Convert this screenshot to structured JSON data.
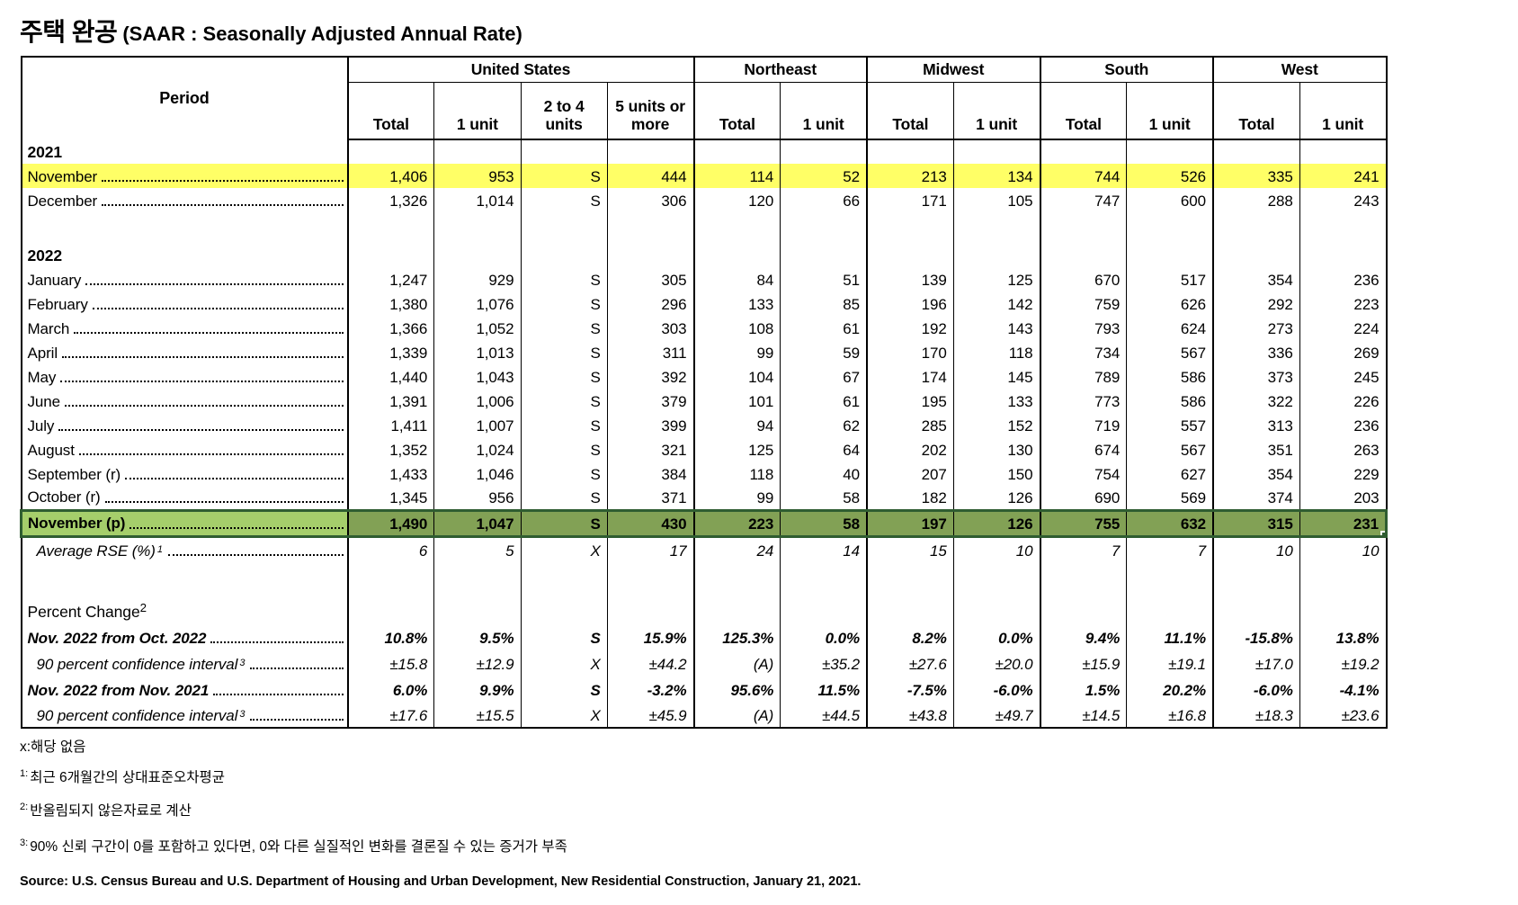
{
  "title": {
    "korean": "주택 완공",
    "english": "(SAAR : Seasonally Adjusted Annual Rate)"
  },
  "table": {
    "period_header": "Period",
    "groups": [
      {
        "label": "United States",
        "span": 4
      },
      {
        "label": "Northeast",
        "span": 2
      },
      {
        "label": "Midwest",
        "span": 2
      },
      {
        "label": "South",
        "span": 2
      },
      {
        "label": "West",
        "span": 2
      }
    ],
    "columns": [
      "Total",
      "1 unit",
      "2 to 4 units",
      "5 units or more",
      "Total",
      "1 unit",
      "Total",
      "1 unit",
      "Total",
      "1 unit",
      "Total",
      "1 unit"
    ],
    "rows": [
      {
        "type": "year",
        "label": "2021"
      },
      {
        "type": "data",
        "label": "November",
        "highlight": "yellow",
        "values": [
          "1,406",
          "953",
          "S",
          "444",
          "114",
          "52",
          "213",
          "134",
          "744",
          "526",
          "335",
          "241"
        ]
      },
      {
        "type": "data",
        "label": "December",
        "values": [
          "1,326",
          "1,014",
          "S",
          "306",
          "120",
          "66",
          "171",
          "105",
          "747",
          "600",
          "288",
          "243"
        ]
      },
      {
        "type": "blank"
      },
      {
        "type": "year",
        "label": "2022"
      },
      {
        "type": "data",
        "label": "January",
        "values": [
          "1,247",
          "929",
          "S",
          "305",
          "84",
          "51",
          "139",
          "125",
          "670",
          "517",
          "354",
          "236"
        ]
      },
      {
        "type": "data",
        "label": "February",
        "values": [
          "1,380",
          "1,076",
          "S",
          "296",
          "133",
          "85",
          "196",
          "142",
          "759",
          "626",
          "292",
          "223"
        ]
      },
      {
        "type": "data",
        "label": "March",
        "values": [
          "1,366",
          "1,052",
          "S",
          "303",
          "108",
          "61",
          "192",
          "143",
          "793",
          "624",
          "273",
          "224"
        ]
      },
      {
        "type": "data",
        "label": "April",
        "values": [
          "1,339",
          "1,013",
          "S",
          "311",
          "99",
          "59",
          "170",
          "118",
          "734",
          "567",
          "336",
          "269"
        ]
      },
      {
        "type": "data",
        "label": "May",
        "values": [
          "1,440",
          "1,043",
          "S",
          "392",
          "104",
          "67",
          "174",
          "145",
          "789",
          "586",
          "373",
          "245"
        ]
      },
      {
        "type": "data",
        "label": "June",
        "values": [
          "1,391",
          "1,006",
          "S",
          "379",
          "101",
          "61",
          "195",
          "133",
          "773",
          "586",
          "322",
          "226"
        ]
      },
      {
        "type": "data",
        "label": "July",
        "values": [
          "1,411",
          "1,007",
          "S",
          "399",
          "94",
          "62",
          "285",
          "152",
          "719",
          "557",
          "313",
          "236"
        ]
      },
      {
        "type": "data",
        "label": "August",
        "values": [
          "1,352",
          "1,024",
          "S",
          "321",
          "125",
          "64",
          "202",
          "130",
          "674",
          "567",
          "351",
          "263"
        ]
      },
      {
        "type": "data",
        "label": "September (r)",
        "values": [
          "1,433",
          "1,046",
          "S",
          "384",
          "118",
          "40",
          "207",
          "150",
          "754",
          "627",
          "354",
          "229"
        ]
      },
      {
        "type": "data",
        "label": "October (r)",
        "values": [
          "1,345",
          "956",
          "S",
          "371",
          "99",
          "58",
          "182",
          "126",
          "690",
          "569",
          "374",
          "203"
        ]
      },
      {
        "type": "data",
        "label": "November (p)",
        "highlight": "green",
        "values": [
          "1,490",
          "1,047",
          "S",
          "430",
          "223",
          "58",
          "197",
          "126",
          "755",
          "632",
          "315",
          "231"
        ]
      },
      {
        "type": "data",
        "label": "Average RSE (%)",
        "sup": "1",
        "style": "italic",
        "values": [
          "6",
          "5",
          "X",
          "17",
          "24",
          "14",
          "15",
          "10",
          "7",
          "7",
          "10",
          "10"
        ]
      },
      {
        "type": "blank"
      },
      {
        "type": "section",
        "label": "Percent Change",
        "sup": "2"
      },
      {
        "type": "data",
        "label": "Nov. 2022 from Oct. 2022",
        "style": "bold-italic",
        "values": [
          "10.8%",
          "9.5%",
          "S",
          "15.9%",
          "125.3%",
          "0.0%",
          "8.2%",
          "0.0%",
          "9.4%",
          "11.1%",
          "-15.8%",
          "13.8%"
        ]
      },
      {
        "type": "data",
        "label": "90 percent confidence interval",
        "sup": "3",
        "style": "italic",
        "values": [
          "±15.8",
          "±12.9",
          "X",
          "±44.2",
          "(A)",
          "±35.2",
          "±27.6",
          "±20.0",
          "±15.9",
          "±19.1",
          "±17.0",
          "±19.2"
        ]
      },
      {
        "type": "data",
        "label": "Nov. 2022 from Nov. 2021",
        "style": "bold-italic",
        "values": [
          "6.0%",
          "9.9%",
          "S",
          "-3.2%",
          "95.6%",
          "11.5%",
          "-7.5%",
          "-6.0%",
          "1.5%",
          "20.2%",
          "-6.0%",
          "-4.1%"
        ]
      },
      {
        "type": "data",
        "label": "90 percent confidence interval",
        "sup": "3",
        "style": "italic",
        "values": [
          "±17.6",
          "±15.5",
          "X",
          "±45.9",
          "(A)",
          "±44.5",
          "±43.8",
          "±49.7",
          "±14.5",
          "±16.8",
          "±18.3",
          "±23.6"
        ]
      }
    ]
  },
  "footnotes": [
    {
      "sup": "",
      "text": "x:해당 없음"
    },
    {
      "sup": "1:",
      "text": "최근 6개월간의 상대표준오차평균"
    },
    {
      "sup": "2:",
      "text": "반올림되지 않은자료로 계산"
    },
    {
      "sup": "3:",
      "text": "90% 신뢰 구간이 0를 포함하고 있다면, 0와 다른 실질적인 변화를 결론질 수 있는 증거가 부족"
    }
  ],
  "source": "Source: U.S. Census Bureau and U.S. Department of Housing and Urban Development, New Residential Construction, January 21, 2021.",
  "colors": {
    "highlight_yellow": "#FFFF66",
    "selected_period_green": "#A5CE6B",
    "selected_data_green": "#82A155",
    "selection_border_green": "#2F5D31"
  }
}
